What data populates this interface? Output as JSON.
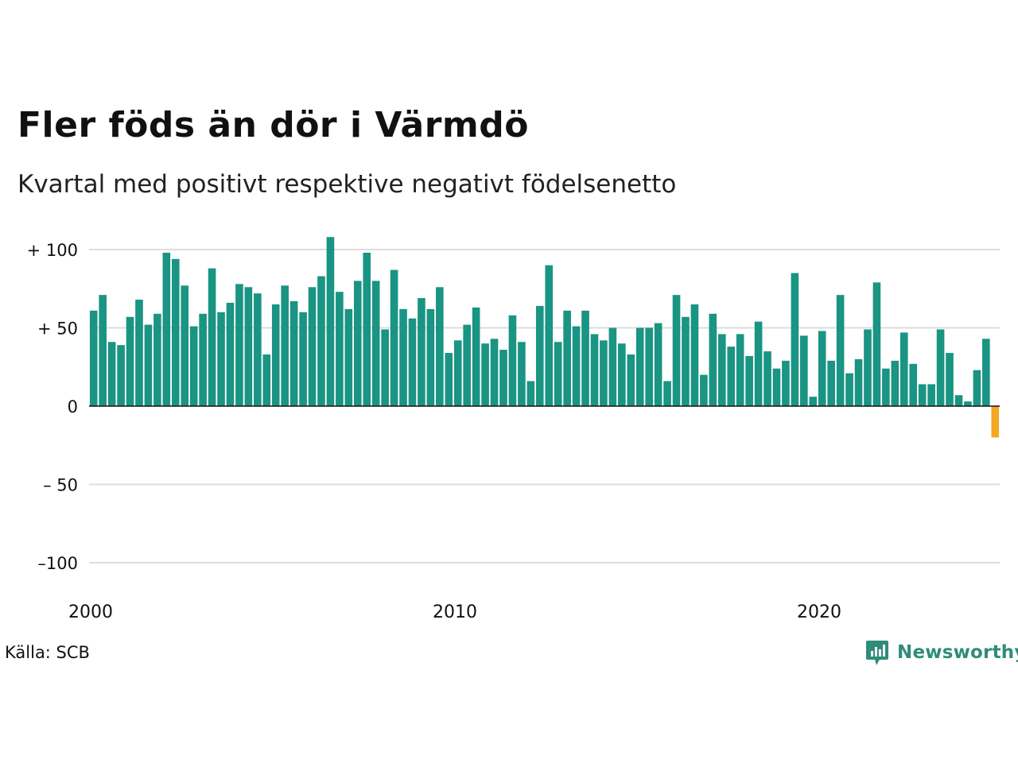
{
  "title": "Fler föds än dör i Värmdö",
  "subtitle": "Kvartal med positivt respektive negativt födelsenetto",
  "source": "Källa: SCB",
  "brand": {
    "name": "Newsworthy",
    "icon": "newsworthy-logo-icon",
    "color": "#2f8c7a"
  },
  "colors": {
    "positive": "#1a9483",
    "negative": "#f5a623",
    "grid": "#dddddd"
  },
  "chart_data": {
    "type": "bar",
    "start_year": 2000,
    "period": "quarter",
    "y_ticks": [
      100,
      50,
      0,
      -50,
      -100
    ],
    "y_tick_labels": [
      "+ 100",
      "+  50",
      "0",
      "– 50",
      "–100"
    ],
    "x_ticks": [
      "2000",
      "2010",
      "2020"
    ],
    "ylim": [
      -100,
      110
    ],
    "grid": true,
    "values": [
      61,
      71,
      41,
      39,
      57,
      68,
      52,
      59,
      98,
      94,
      77,
      51,
      59,
      88,
      60,
      66,
      78,
      76,
      72,
      33,
      65,
      77,
      67,
      60,
      76,
      83,
      108,
      73,
      62,
      80,
      98,
      80,
      49,
      87,
      62,
      56,
      69,
      62,
      76,
      34,
      42,
      52,
      63,
      40,
      43,
      36,
      58,
      41,
      16,
      64,
      90,
      41,
      61,
      51,
      61,
      46,
      42,
      50,
      40,
      33,
      50,
      50,
      53,
      16,
      71,
      57,
      65,
      20,
      59,
      46,
      38,
      46,
      32,
      54,
      35,
      24,
      29,
      85,
      45,
      6,
      48,
      29,
      71,
      21,
      30,
      49,
      79,
      24,
      29,
      47,
      27,
      14,
      14,
      49,
      34,
      7,
      3,
      23,
      43,
      -20
    ]
  }
}
